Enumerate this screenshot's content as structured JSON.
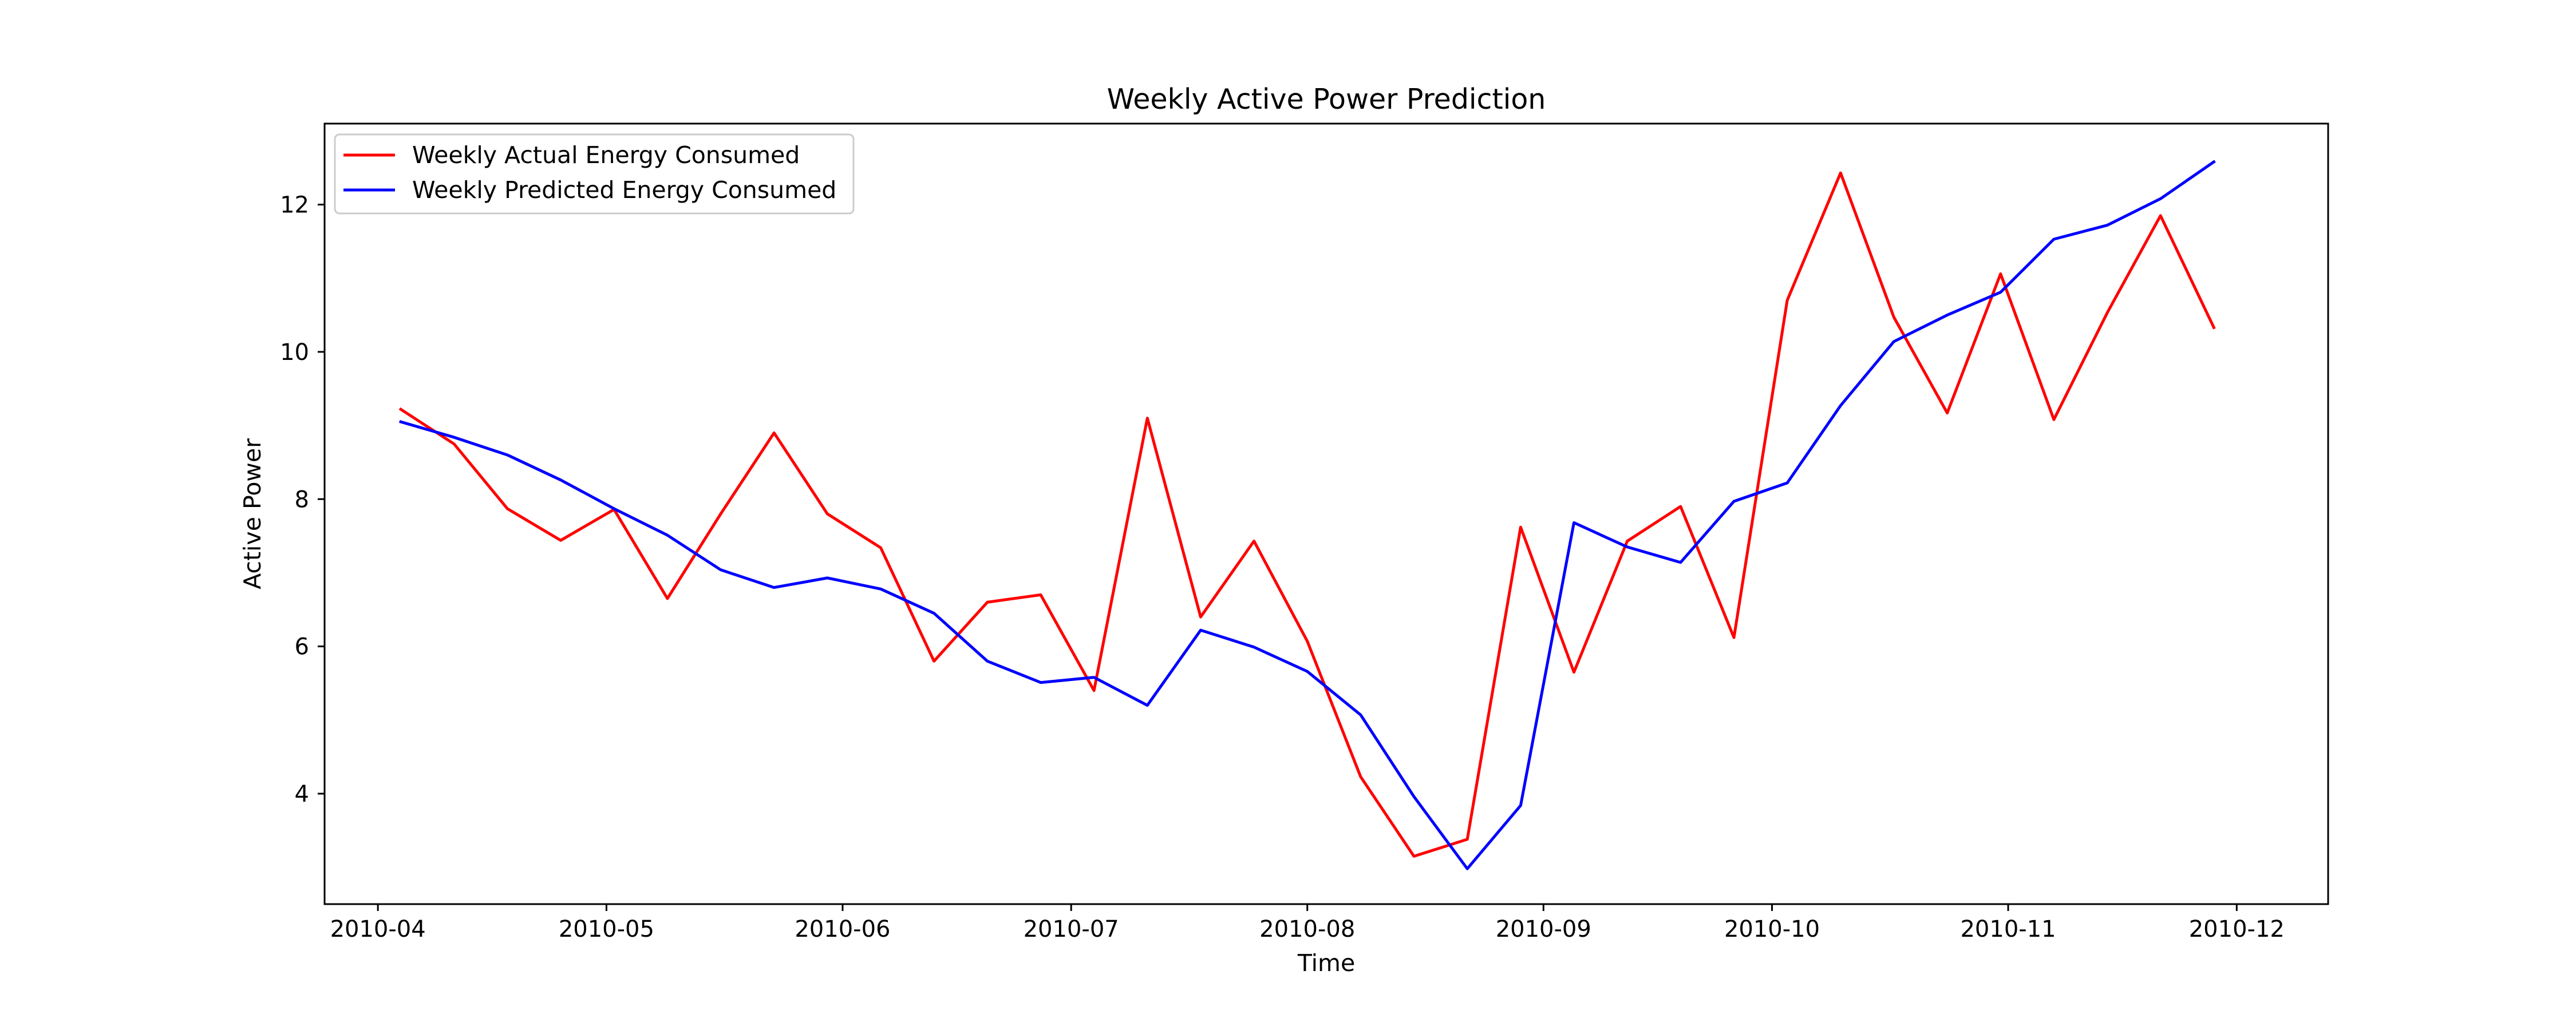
{
  "chart_data": {
    "type": "line",
    "title": "Weekly Active Power Prediction",
    "xlabel": "Time",
    "ylabel": "Active Power",
    "x_type": "date",
    "xlim": [
      "2010-03-25",
      "2010-12-13"
    ],
    "ylim": [
      2.5,
      13.1
    ],
    "x_ticks": [
      "2010-04-01",
      "2010-05-01",
      "2010-06-01",
      "2010-07-01",
      "2010-08-01",
      "2010-09-01",
      "2010-10-01",
      "2010-11-01",
      "2010-12-01"
    ],
    "x_tick_labels": [
      "2010-04",
      "2010-05",
      "2010-06",
      "2010-07",
      "2010-08",
      "2010-09",
      "2010-10",
      "2010-11",
      "2010-12"
    ],
    "y_ticks": [
      4,
      6,
      8,
      10,
      12
    ],
    "y_tick_labels": [
      "4",
      "6",
      "8",
      "10",
      "12"
    ],
    "grid": false,
    "legend_position": "top-left",
    "x": [
      "2010-04-04",
      "2010-04-11",
      "2010-04-18",
      "2010-04-25",
      "2010-05-02",
      "2010-05-09",
      "2010-05-16",
      "2010-05-23",
      "2010-05-30",
      "2010-06-06",
      "2010-06-13",
      "2010-06-20",
      "2010-06-27",
      "2010-07-04",
      "2010-07-11",
      "2010-07-18",
      "2010-07-25",
      "2010-08-01",
      "2010-08-08",
      "2010-08-15",
      "2010-08-22",
      "2010-08-29",
      "2010-09-05",
      "2010-09-12",
      "2010-09-19",
      "2010-09-26",
      "2010-10-03",
      "2010-10-10",
      "2010-10-17",
      "2010-10-24",
      "2010-10-31",
      "2010-11-07",
      "2010-11-14",
      "2010-11-21",
      "2010-11-28"
    ],
    "series": [
      {
        "name": "Weekly Actual Energy Consumed",
        "color": "#ff0000",
        "values": [
          9.22,
          8.75,
          7.87,
          7.44,
          7.86,
          6.65,
          7.8,
          8.9,
          7.8,
          7.34,
          5.8,
          6.6,
          6.7,
          5.4,
          9.1,
          6.4,
          7.43,
          6.07,
          4.23,
          3.15,
          3.38,
          7.62,
          5.65,
          7.43,
          7.9,
          6.12,
          10.7,
          12.43,
          10.47,
          9.17,
          11.06,
          9.08,
          10.53,
          11.85,
          10.33
        ]
      },
      {
        "name": "Weekly Predicted Energy Consumed",
        "color": "#0000ff",
        "values": [
          9.05,
          8.84,
          8.6,
          8.26,
          7.87,
          7.51,
          7.04,
          6.8,
          6.93,
          6.78,
          6.45,
          5.8,
          5.51,
          5.58,
          5.2,
          6.22,
          5.99,
          5.66,
          5.07,
          3.96,
          2.98,
          3.84,
          7.68,
          7.35,
          7.14,
          7.97,
          8.22,
          9.27,
          10.14,
          10.5,
          10.81,
          11.53,
          11.72,
          12.08,
          12.58
        ]
      }
    ]
  }
}
